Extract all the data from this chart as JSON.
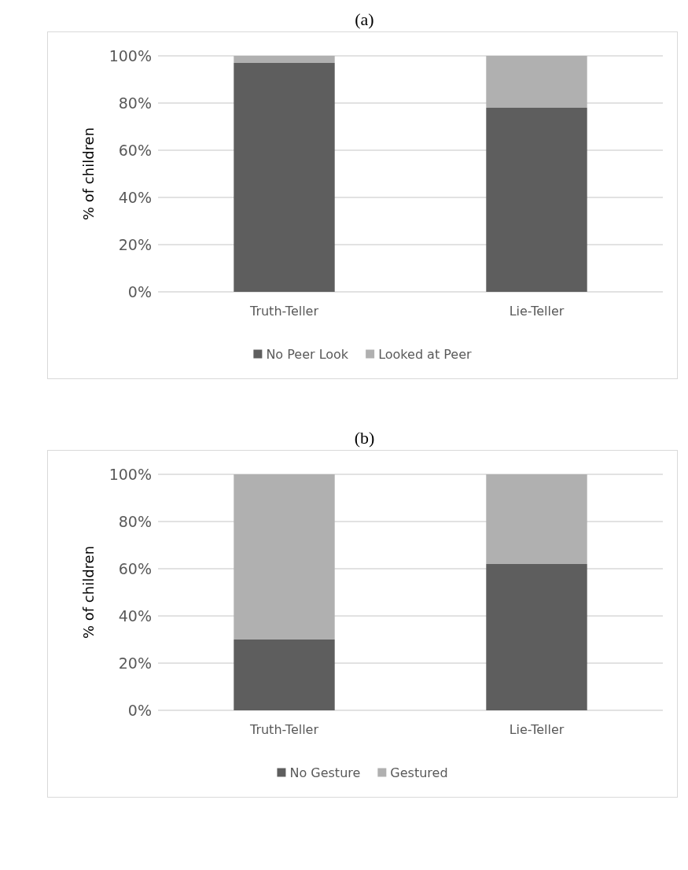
{
  "chart_data": [
    {
      "type": "bar",
      "title": "(a)",
      "ylabel": "% of children",
      "categories": [
        "Truth-Teller",
        "Lie-Teller"
      ],
      "stacked": true,
      "series": [
        {
          "name": "No Peer Look",
          "color": "#5e5e5e",
          "values": [
            97,
            78
          ]
        },
        {
          "name": "Looked at Peer",
          "color": "#b0b0b0",
          "values": [
            3,
            22
          ]
        }
      ],
      "ylim": [
        0,
        100
      ],
      "yticks": [
        {
          "value": 0,
          "label": "0%"
        },
        {
          "value": 20,
          "label": "20%"
        },
        {
          "value": 40,
          "label": "40%"
        },
        {
          "value": 60,
          "label": "60%"
        },
        {
          "value": 80,
          "label": "80%"
        },
        {
          "value": 100,
          "label": "100%"
        }
      ],
      "grid": "y",
      "legend": "bottom"
    },
    {
      "type": "bar",
      "title": "(b)",
      "ylabel": "% of children",
      "categories": [
        "Truth-Teller",
        "Lie-Teller"
      ],
      "stacked": true,
      "series": [
        {
          "name": "No Gesture",
          "color": "#5e5e5e",
          "values": [
            30,
            62
          ]
        },
        {
          "name": "Gestured",
          "color": "#b0b0b0",
          "values": [
            70,
            38
          ]
        }
      ],
      "ylim": [
        0,
        100
      ],
      "yticks": [
        {
          "value": 0,
          "label": "0%"
        },
        {
          "value": 20,
          "label": "20%"
        },
        {
          "value": 40,
          "label": "40%"
        },
        {
          "value": 60,
          "label": "60%"
        },
        {
          "value": 80,
          "label": "80%"
        },
        {
          "value": 100,
          "label": "100%"
        }
      ],
      "grid": "y",
      "legend": "bottom"
    }
  ]
}
